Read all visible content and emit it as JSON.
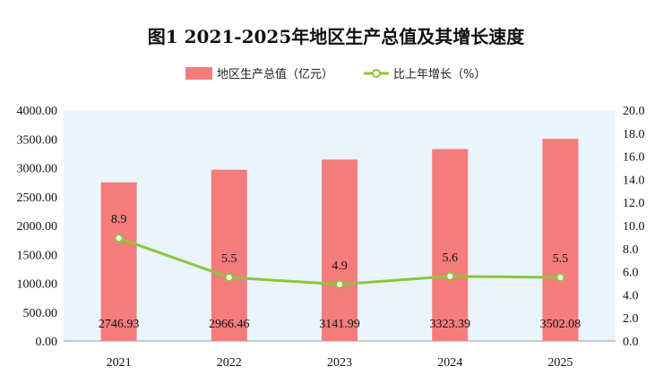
{
  "chart_data": {
    "type": "bar+line",
    "title": "图1   2021-2025年地区生产总值及其增长速度",
    "categories": [
      "2021",
      "2022",
      "2023",
      "2024",
      "2025"
    ],
    "series": [
      {
        "name": "地区生产总值（亿元）",
        "type": "bar",
        "axis": "left",
        "color": "#f47c7c",
        "values": [
          2746.93,
          2966.46,
          3141.99,
          3323.39,
          3502.08
        ],
        "labels": [
          "2746.93",
          "2966.46",
          "3141.99",
          "3323.39",
          "3502.08"
        ]
      },
      {
        "name": "比上年增长（%）",
        "type": "line",
        "axis": "right",
        "color": "#8cc63f",
        "values": [
          8.9,
          5.5,
          4.9,
          5.6,
          5.5
        ],
        "labels": [
          "8.9",
          "5.5",
          "4.9",
          "5.6",
          "5.5"
        ]
      }
    ],
    "y_left": {
      "min": 0,
      "max": 4000,
      "step": 500,
      "ticks": [
        "0.00",
        "500.00",
        "1000.00",
        "1500.00",
        "2000.00",
        "2500.00",
        "3000.00",
        "3500.00",
        "4000.00"
      ]
    },
    "y_right": {
      "min": 0,
      "max": 20,
      "step": 2,
      "ticks": [
        "0.0",
        "2.0",
        "4.0",
        "6.0",
        "8.0",
        "10.0",
        "12.0",
        "14.0",
        "16.0",
        "18.0",
        "20.0"
      ]
    },
    "plot_background": "#eaf4fb",
    "legend_position": "top-center",
    "grid": false
  }
}
